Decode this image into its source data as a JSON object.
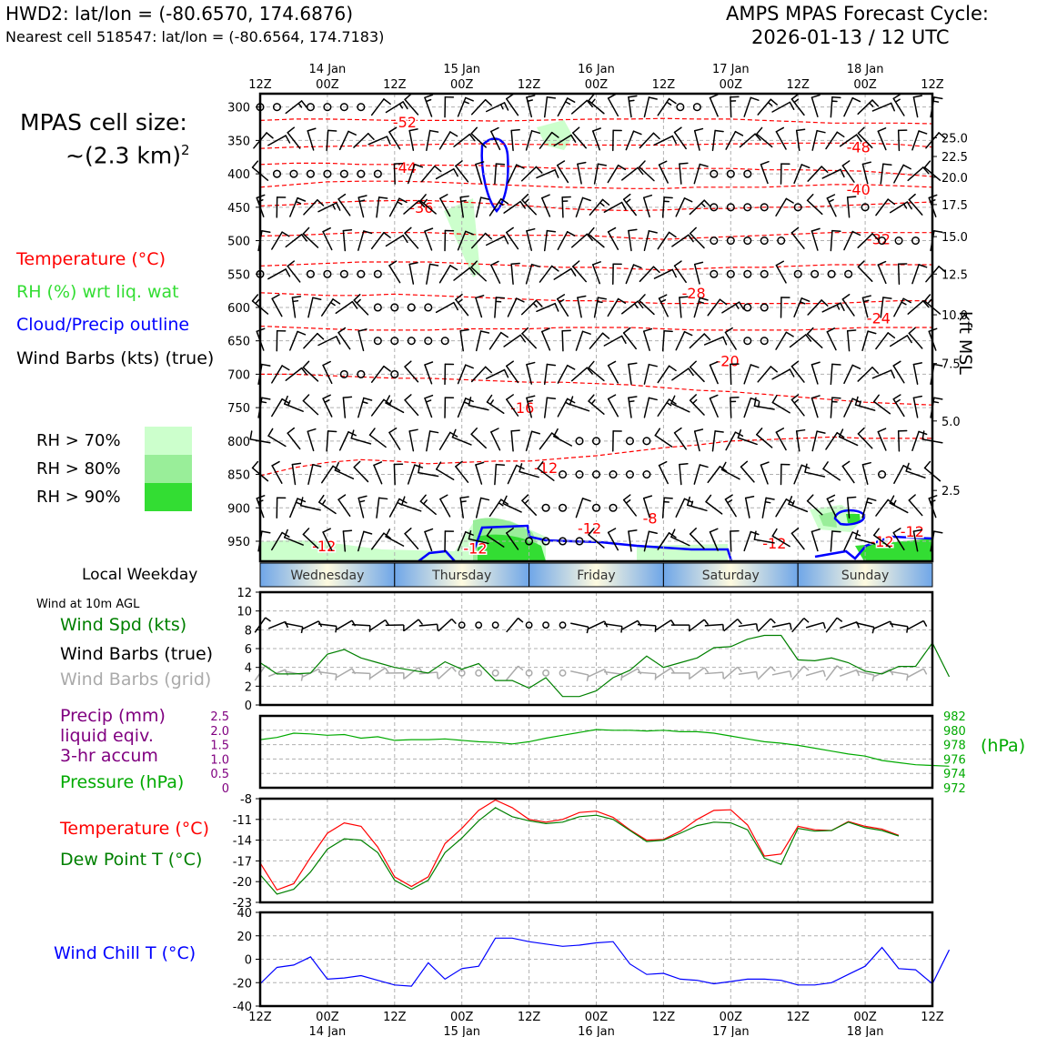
{
  "header": {
    "station": "HWD2: lat/lon = (-80.6570, 174.6876)",
    "nearest_cell": "Nearest cell 518547: lat/lon = (-80.6564, 174.7183)",
    "model_title": "AMPS MPAS Forecast Cycle:",
    "cycle": "2026-01-13 / 12 UTC"
  },
  "cell_size": {
    "line1": "MPAS cell size:",
    "line2": "~(2.3 km)",
    "exp": "2"
  },
  "legend_upper": {
    "temperature": {
      "text": "Temperature (°C)",
      "color": "#ff0000"
    },
    "rh": {
      "text": "RH (%) wrt liq. wat",
      "color": "#33dd33"
    },
    "cloud": {
      "text": "Cloud/Precip outline",
      "color": "#0000ff"
    },
    "barbs": {
      "text": "Wind Barbs (kts) (true)",
      "color": "#000000"
    }
  },
  "rh_legend": [
    {
      "text": "RH > 70%",
      "color": "#ccffcc"
    },
    {
      "text": "RH > 80%",
      "color": "#99ee99"
    },
    {
      "text": "RH > 90%",
      "color": "#33dd33"
    }
  ],
  "local_weekday_label": "Local Weekday",
  "weekdays": [
    "Wednesday",
    "Thursday",
    "Friday",
    "Saturday",
    "Sunday"
  ],
  "wind_panel": {
    "title": "Wind at 10m AGL",
    "spd": {
      "text": "Wind Spd (kts)",
      "color": "#008000"
    },
    "true": {
      "text": "Wind Barbs (true)",
      "color": "#000000"
    },
    "grid": {
      "text": "Wind Barbs (grid)",
      "color": "#aaaaaa"
    }
  },
  "precip_panel": {
    "precip_l1": "Precip (mm)",
    "precip_l2": "liquid eqiv.",
    "precip_l3": "3-hr accum",
    "precip_color": "#800080",
    "pressure": {
      "text": "Pressure (hPa)",
      "color": "#00aa00"
    },
    "hpa_label": "(hPa)"
  },
  "temp_panel": {
    "temp": {
      "text": "Temperature (°C)",
      "color": "#ff0000"
    },
    "dew": {
      "text": "Dew Point T (°C)",
      "color": "#008000"
    }
  },
  "chill_panel": {
    "label": {
      "text": "Wind Chill T (°C)",
      "color": "#0000ff"
    }
  },
  "time_axis": {
    "hours": [
      "12Z",
      "00Z",
      "12Z",
      "00Z",
      "12Z",
      "00Z",
      "12Z",
      "00Z",
      "12Z",
      "00Z",
      "12Z"
    ],
    "dates": [
      "",
      "14 Jan",
      "",
      "15 Jan",
      "",
      "16 Jan",
      "",
      "17 Jan",
      "",
      "18 Jan",
      ""
    ]
  },
  "chart_data": [
    {
      "type": "heatmap",
      "name": "upper-air time-height section",
      "y_ticks_hpa": [
        300,
        350,
        400,
        450,
        500,
        550,
        600,
        650,
        700,
        750,
        800,
        850,
        900,
        950
      ],
      "right_ticks_kft": [
        "25.0",
        "22.5",
        "20.0",
        "17.5",
        "15.0",
        "12.5",
        "10.0",
        "7.5",
        "5.0",
        "2.5"
      ],
      "right_ticks_kft_hpa": [
        346,
        374,
        405,
        446,
        494,
        550,
        611,
        684,
        770,
        874
      ],
      "right_axis_label": "kft MSL",
      "isotherms": [
        {
          "label": "-52",
          "hpa": [
            320,
            318,
            318,
            319,
            320,
            320,
            320,
            321,
            320,
            319,
            318,
            318,
            317,
            318,
            318,
            320,
            322,
            324,
            324,
            324,
            325
          ]
        },
        {
          "label": "-48",
          "hpa": [
            362,
            360,
            359,
            358,
            357,
            356,
            355,
            355,
            356,
            356,
            357,
            357,
            357,
            356,
            355,
            355,
            354,
            354,
            354,
            356,
            360
          ]
        },
        {
          "label": "-44",
          "hpa": [
            386,
            384,
            384,
            386,
            386,
            387,
            387,
            388,
            390,
            392,
            392,
            392,
            392,
            392,
            392,
            394,
            394,
            395,
            396,
            400,
            404
          ]
        },
        {
          "label": "-40",
          "hpa": [
            420,
            416,
            412,
            411,
            411,
            412,
            414,
            416,
            418,
            420,
            421,
            422,
            422,
            420,
            420,
            420,
            418,
            416,
            416,
            418,
            420
          ]
        },
        {
          "label": "-36",
          "hpa": [
            448,
            446,
            443,
            441,
            440,
            440,
            442,
            445,
            448,
            452,
            454,
            455,
            454,
            452,
            452,
            450,
            450,
            448,
            446,
            444,
            442
          ]
        },
        {
          "label": "-32",
          "hpa": [
            493,
            492,
            490,
            488,
            488,
            488,
            490,
            492,
            492,
            492,
            493,
            496,
            498,
            496,
            494,
            492,
            490,
            488,
            488,
            488,
            488
          ]
        },
        {
          "label": "-28",
          "hpa": [
            538,
            536,
            534,
            532,
            532,
            532,
            534,
            536,
            538,
            540,
            540,
            542,
            544,
            542,
            540,
            540,
            538,
            536,
            536,
            536,
            536
          ]
        },
        {
          "label": "-24",
          "hpa": [
            578,
            580,
            582,
            582,
            580,
            582,
            584,
            586,
            588,
            590,
            590,
            592,
            594,
            594,
            594,
            594,
            594,
            594,
            592,
            590,
            590
          ]
        },
        {
          "label": "-20",
          "hpa": [
            628,
            630,
            632,
            634,
            634,
            634,
            632,
            632,
            632,
            630,
            630,
            630,
            632,
            634,
            634,
            634,
            634,
            632,
            630,
            630,
            630
          ]
        },
        {
          "label": "-16",
          "hpa": [
            700,
            700,
            702,
            704,
            706,
            706,
            708,
            710,
            712,
            712,
            714,
            716,
            720,
            724,
            726,
            730,
            734,
            738,
            742,
            744,
            746
          ]
        },
        {
          "label": "-12",
          "hpa": [
            852,
            840,
            832,
            828,
            830,
            834,
            832,
            830,
            830,
            826,
            822,
            816,
            810,
            806,
            800,
            798,
            796,
            794,
            796,
            796,
            796
          ]
        }
      ],
      "isotherm_label_pos": [
        {
          "label": "-52",
          "x_idx": 4.3,
          "hpa": 322
        },
        {
          "label": "-48",
          "x_idx": 17.8,
          "hpa": 360
        },
        {
          "label": "-44",
          "x_idx": 4.3,
          "hpa": 390
        },
        {
          "label": "-40",
          "x_idx": 17.8,
          "hpa": 423
        },
        {
          "label": "-36",
          "x_idx": 4.8,
          "hpa": 450
        },
        {
          "label": "-32",
          "x_idx": 18.4,
          "hpa": 497
        },
        {
          "label": "-28",
          "x_idx": 12.9,
          "hpa": 578
        },
        {
          "label": "-24",
          "x_idx": 18.4,
          "hpa": 616
        },
        {
          "label": "-20",
          "x_idx": 13.9,
          "hpa": 680
        },
        {
          "label": "-16",
          "x_idx": 7.8,
          "hpa": 750
        },
        {
          "label": "-12",
          "x_idx": 8.5,
          "hpa": 840
        },
        {
          "label": "-12",
          "x_idx": 1.9,
          "hpa": 957
        },
        {
          "label": "-12",
          "x_idx": 6.4,
          "hpa": 960
        },
        {
          "label": "-12",
          "x_idx": 9.8,
          "hpa": 930
        },
        {
          "label": "-8",
          "x_idx": 11.6,
          "hpa": 915
        },
        {
          "label": "-12",
          "x_idx": 15.3,
          "hpa": 953
        },
        {
          "label": "-12",
          "x_idx": 18.5,
          "hpa": 950
        },
        {
          "label": "-12",
          "x_idx": 19.4,
          "hpa": 935
        }
      ]
    },
    {
      "type": "line",
      "name": "10m wind speed",
      "x_start_hour": 0,
      "x_step_hours": 3,
      "values": [
        4.5,
        3.3,
        3.3,
        3.4,
        5.4,
        5.9,
        5.0,
        4.5,
        4.0,
        3.7,
        3.4,
        4.6,
        3.8,
        4.4,
        2.6,
        2.6,
        1.8,
        2.9,
        0.9,
        0.9,
        1.5,
        2.9,
        3.7,
        5.2,
        4.0,
        4.5,
        5.0,
        6.1,
        6.2,
        7.0,
        7.4,
        7.4,
        4.8,
        4.7,
        5.0,
        4.5,
        3.6,
        3.3,
        4.1,
        4.1,
        6.6,
        3.0
      ],
      "ylim": [
        0,
        12
      ],
      "yticks": [
        0,
        2,
        4,
        6,
        8,
        10,
        12
      ]
    },
    {
      "type": "line",
      "name": "surface pressure",
      "x_start_hour": 0,
      "x_step_hours": 3,
      "values": [
        978.7,
        979.0,
        979.6,
        979.5,
        979.3,
        979.4,
        978.9,
        979.1,
        978.6,
        978.7,
        978.7,
        978.8,
        978.6,
        978.4,
        978.3,
        978.1,
        978.4,
        978.9,
        979.3,
        979.7,
        980.1,
        980.0,
        980.0,
        979.9,
        980.0,
        979.8,
        979.8,
        979.6,
        979.2,
        978.8,
        978.4,
        978.2,
        977.9,
        977.5,
        977.1,
        976.7,
        976.4,
        975.8,
        975.5,
        975.2,
        975.1,
        975.0
      ],
      "ylim": [
        972,
        982
      ],
      "yticks_left": [
        0,
        0.5,
        1.0,
        1.5,
        2.0,
        2.5
      ],
      "yticks_right": [
        972,
        974,
        976,
        978,
        980,
        982
      ]
    },
    {
      "type": "line",
      "name": "temperature and dew point",
      "x_start_hour": 0,
      "x_step_hours": 3,
      "series": [
        {
          "name": "Temperature",
          "color": "#ff0000",
          "values": [
            -17.3,
            -21.2,
            -20.3,
            -16.5,
            -13.0,
            -11.5,
            -12.0,
            -15.0,
            -19.3,
            -20.7,
            -19.3,
            -14.5,
            -12.3,
            -9.7,
            -8.2,
            -9.3,
            -11.0,
            -11.4,
            -11.0,
            -10.0,
            -9.8,
            -10.7,
            -12.5,
            -14.0,
            -13.9,
            -12.7,
            -11.0,
            -9.7,
            -9.6,
            -11.8,
            -16.3,
            -16.0,
            -12.0,
            -12.5,
            -12.6,
            -11.3,
            -12.0,
            -12.4,
            -13.3
          ]
        },
        {
          "name": "Dew Point",
          "color": "#008000",
          "values": [
            -19.0,
            -21.8,
            -21.1,
            -18.6,
            -15.3,
            -13.8,
            -14.0,
            -15.8,
            -19.8,
            -21.1,
            -19.8,
            -15.8,
            -13.7,
            -11.2,
            -9.3,
            -10.6,
            -11.2,
            -11.6,
            -11.4,
            -10.6,
            -10.4,
            -11.0,
            -12.6,
            -14.2,
            -14.0,
            -13.0,
            -11.9,
            -11.4,
            -11.5,
            -12.5,
            -16.6,
            -17.5,
            -12.3,
            -12.7,
            -12.6,
            -11.4,
            -12.2,
            -12.6,
            -13.4
          ]
        }
      ],
      "ylim": [
        -23,
        -8
      ],
      "yticks": [
        -23,
        -20,
        -17,
        -14,
        -11,
        -8
      ]
    },
    {
      "type": "line",
      "name": "wind chill temperature",
      "x_start_hour": 0,
      "x_step_hours": 3,
      "values": [
        -21,
        -7,
        -5,
        2,
        -17,
        -16,
        -14,
        -18,
        -22,
        -23,
        -3,
        -17,
        -8,
        -6,
        18,
        18,
        15,
        13,
        11,
        12,
        14,
        15,
        -4,
        -13,
        -12,
        -17,
        -18,
        -21,
        -19,
        -17,
        -17,
        -18,
        -22,
        -22,
        -20,
        -13,
        -6,
        10,
        -8,
        -9,
        -21,
        8
      ],
      "ylim": [
        -40,
        40
      ],
      "yticks": [
        -40,
        -20,
        0,
        20,
        40
      ]
    }
  ]
}
